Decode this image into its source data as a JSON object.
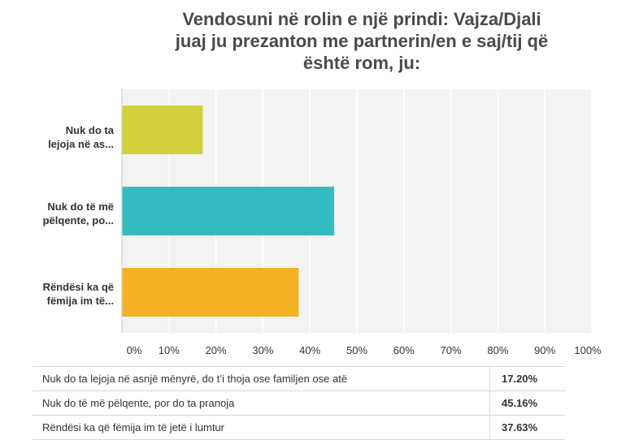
{
  "chart_data": {
    "type": "bar",
    "orientation": "horizontal",
    "title_lines": [
      "Vendosuni në rolin e një prindi: Vajza/Djali",
      "juaj ju prezanton me partnerin/en e saj/tij që",
      "është rom, ju:"
    ],
    "category_labels": [
      [
        "Nuk do ta",
        "lejoja në as..."
      ],
      [
        "Nuk do të më",
        "pëlqente, po..."
      ],
      [
        "Rëndësi ka që",
        "fëmija im të..."
      ]
    ],
    "categories": [
      "Nuk do ta lejoja në asnjë mënyrë, do t’i thoja ose familjen ose atë",
      "Nuk do të më pëlqente, por do ta pranoja",
      "Rëndësi ka që fëmija im të jetë i lumtur"
    ],
    "values": [
      17.2,
      45.16,
      37.63
    ],
    "value_labels": [
      "17.20%",
      "45.16%",
      "37.63%"
    ],
    "colors": [
      "#d1d23b",
      "#33bcc0",
      "#f4b124"
    ],
    "xlim": [
      0,
      100
    ],
    "ticks": [
      0,
      10,
      20,
      30,
      40,
      50,
      60,
      70,
      80,
      90,
      100
    ],
    "tick_labels": [
      "0%",
      "10%",
      "20%",
      "30%",
      "40%",
      "50%",
      "60%",
      "70%",
      "80%",
      "90%",
      "100%"
    ],
    "grid": true,
    "plot_background": "#f3f3f3",
    "gridline_color": "#ffffff"
  }
}
